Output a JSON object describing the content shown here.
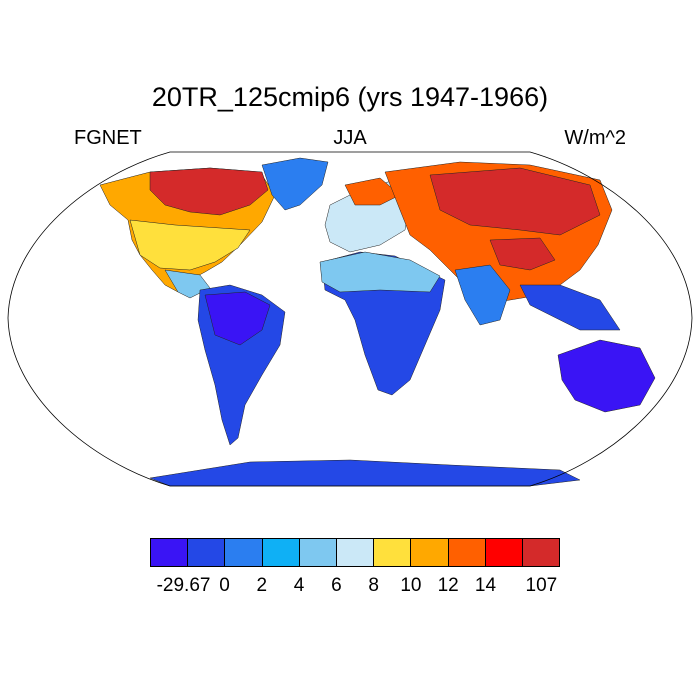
{
  "title": "20TR_125cmip6 (yrs 1947-1966)",
  "left_label": "FGNET",
  "center_label": "JJA",
  "right_label": "W/m^2",
  "colorbar": {
    "colors": [
      "#3a14f5",
      "#2448e6",
      "#2b7ef0",
      "#0fb0f5",
      "#7ec8f0",
      "#cbe8f7",
      "#ffe03c",
      "#ffa800",
      "#ff6000",
      "#ff0000",
      "#d42a2a"
    ],
    "labels": [
      "-29.67",
      "0",
      "2",
      "4",
      "6",
      "8",
      "10",
      "12",
      "14",
      "107"
    ]
  },
  "map": {
    "projection": "robinson",
    "ocean_color": "#ffffff",
    "coastline_color": "#000000"
  }
}
